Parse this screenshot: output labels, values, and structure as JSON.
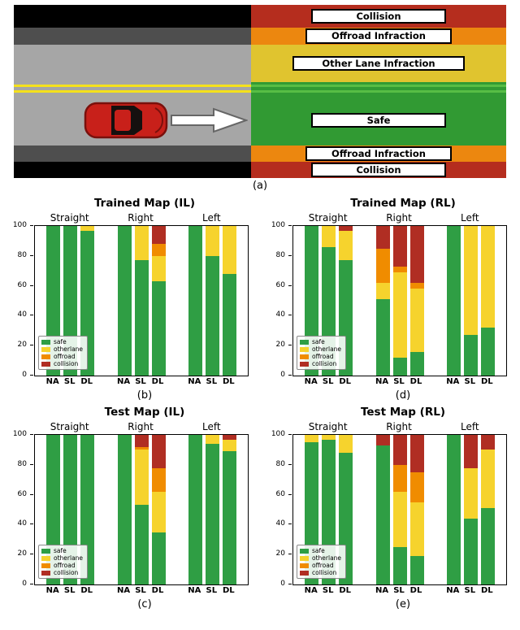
{
  "page": {
    "panel_labels": {
      "a": "(a)",
      "b": "(b)",
      "c": "(c)",
      "d": "(d)",
      "e": "(e)"
    }
  },
  "diagram": {
    "labels": {
      "collision": "Collision",
      "offroad": "Offroad Infraction",
      "otherlane": "Other Lane Infraction",
      "safe": "Safe"
    },
    "colors": {
      "collision": "#b52d1e",
      "offroad": "#ec870f",
      "otherlane": "#e0c42f",
      "safe": "#319a33",
      "road": "#a6a6a6",
      "shoulder": "#4e4e4e",
      "edge": "#000000",
      "lane_line": "#f5e11c",
      "car": "#c8201a"
    }
  },
  "series_meta": {
    "order": [
      "safe",
      "otherlane",
      "offroad",
      "collision"
    ],
    "colors": {
      "safe": "#2f9e44",
      "otherlane": "#f6d32d",
      "offroad": "#f08c00",
      "collision": "#b02e23"
    }
  },
  "chart_data": [
    {
      "id": "b",
      "panel_label": "(b)",
      "type": "bar",
      "stacked": true,
      "title": "Trained Map (IL)",
      "categories": [
        "Straight",
        "Right",
        "Left"
      ],
      "bar_labels": [
        "NA",
        "SL",
        "DL"
      ],
      "series_order": [
        "safe",
        "otherlane",
        "offroad",
        "collision"
      ],
      "legend": [
        "safe",
        "otherlane",
        "offroad",
        "collision"
      ],
      "legend_position": "lower left",
      "ylim": [
        0,
        100
      ],
      "yticks": [
        0,
        20,
        40,
        60,
        80,
        100
      ],
      "values": {
        "Straight": {
          "NA": [
            100,
            0,
            0,
            0
          ],
          "SL": [
            100,
            0,
            0,
            0
          ],
          "DL": [
            97,
            3,
            0,
            0
          ]
        },
        "Right": {
          "NA": [
            100,
            0,
            0,
            0
          ],
          "SL": [
            77,
            23,
            0,
            0
          ],
          "DL": [
            63,
            17,
            8,
            12
          ]
        },
        "Left": {
          "NA": [
            100,
            0,
            0,
            0
          ],
          "SL": [
            80,
            20,
            0,
            0
          ],
          "DL": [
            68,
            32,
            0,
            0
          ]
        }
      }
    },
    {
      "id": "d",
      "panel_label": "(d)",
      "type": "bar",
      "stacked": true,
      "title": "Trained Map (RL)",
      "categories": [
        "Straight",
        "Right",
        "Left"
      ],
      "bar_labels": [
        "NA",
        "SL",
        "DL"
      ],
      "series_order": [
        "safe",
        "otherlane",
        "offroad",
        "collision"
      ],
      "legend": [
        "safe",
        "otherlane",
        "offroad",
        "collision"
      ],
      "legend_position": "lower left",
      "ylim": [
        0,
        100
      ],
      "yticks": [
        0,
        20,
        40,
        60,
        80,
        100
      ],
      "values": {
        "Straight": {
          "NA": [
            100,
            0,
            0,
            0
          ],
          "SL": [
            86,
            14,
            0,
            0
          ],
          "DL": [
            77,
            20,
            0,
            3
          ]
        },
        "Right": {
          "NA": [
            51,
            11,
            23,
            15
          ],
          "SL": [
            12,
            57,
            4,
            27
          ],
          "DL": [
            16,
            42,
            4,
            38
          ]
        },
        "Left": {
          "NA": [
            100,
            0,
            0,
            0
          ],
          "SL": [
            27,
            73,
            0,
            0
          ],
          "DL": [
            32,
            68,
            0,
            0
          ]
        }
      }
    },
    {
      "id": "c",
      "panel_label": "(c)",
      "type": "bar",
      "stacked": true,
      "title": "Test Map (IL)",
      "categories": [
        "Straight",
        "Right",
        "Left"
      ],
      "bar_labels": [
        "NA",
        "SL",
        "DL"
      ],
      "series_order": [
        "safe",
        "otherlane",
        "offroad",
        "collision"
      ],
      "legend": [
        "safe",
        "otherlane",
        "offroad",
        "collision"
      ],
      "legend_position": "lower left",
      "ylim": [
        0,
        100
      ],
      "yticks": [
        0,
        20,
        40,
        60,
        80,
        100
      ],
      "values": {
        "Straight": {
          "NA": [
            100,
            0,
            0,
            0
          ],
          "SL": [
            100,
            0,
            0,
            0
          ],
          "DL": [
            100,
            0,
            0,
            0
          ]
        },
        "Right": {
          "NA": [
            100,
            0,
            0,
            0
          ],
          "SL": [
            53,
            37,
            2,
            8
          ],
          "DL": [
            35,
            27,
            16,
            22
          ]
        },
        "Left": {
          "NA": [
            100,
            0,
            0,
            0
          ],
          "SL": [
            94,
            6,
            0,
            0
          ],
          "DL": [
            89,
            8,
            0,
            3
          ]
        }
      }
    },
    {
      "id": "e",
      "panel_label": "(e)",
      "type": "bar",
      "stacked": true,
      "title": "Test Map (RL)",
      "categories": [
        "Straight",
        "Right",
        "Left"
      ],
      "bar_labels": [
        "NA",
        "SL",
        "DL"
      ],
      "series_order": [
        "safe",
        "otherlane",
        "offroad",
        "collision"
      ],
      "legend": [
        "safe",
        "otherlane",
        "offroad",
        "collision"
      ],
      "legend_position": "lower left",
      "ylim": [
        0,
        100
      ],
      "yticks": [
        0,
        20,
        40,
        60,
        80,
        100
      ],
      "values": {
        "Straight": {
          "NA": [
            95,
            5,
            0,
            0
          ],
          "SL": [
            97,
            3,
            0,
            0
          ],
          "DL": [
            88,
            12,
            0,
            0
          ]
        },
        "Right": {
          "NA": [
            93,
            0,
            0,
            7
          ],
          "SL": [
            25,
            37,
            18,
            20
          ],
          "DL": [
            19,
            36,
            20,
            25
          ]
        },
        "Left": {
          "NA": [
            100,
            0,
            0,
            0
          ],
          "SL": [
            44,
            34,
            0,
            22
          ],
          "DL": [
            51,
            39,
            0,
            10
          ]
        }
      }
    }
  ]
}
